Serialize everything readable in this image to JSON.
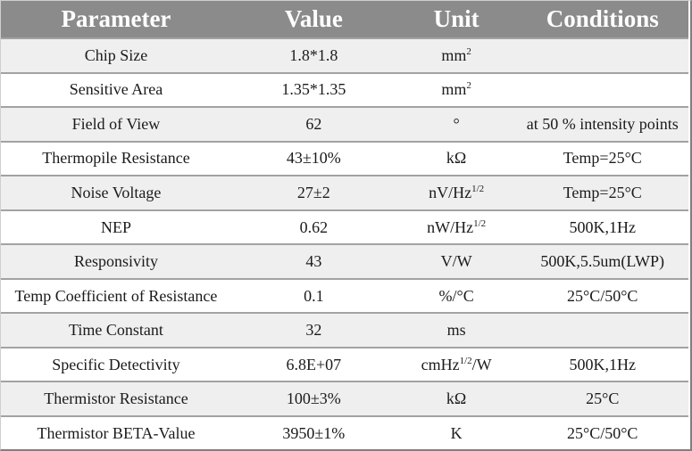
{
  "table": {
    "columns": [
      "Parameter",
      "Value",
      "Unit",
      "Conditions"
    ],
    "rows": [
      {
        "parameter": "Chip Size",
        "value": "1.8*1.8",
        "unit": [
          {
            "t": "mm"
          },
          {
            "s": "2"
          }
        ],
        "conditions": ""
      },
      {
        "parameter": "Sensitive Area",
        "value": "1.35*1.35",
        "unit": [
          {
            "t": "mm"
          },
          {
            "s": "2"
          }
        ],
        "conditions": ""
      },
      {
        "parameter": "Field of View",
        "value": "62",
        "unit": "°",
        "conditions": "at 50 % intensity points"
      },
      {
        "parameter": "Thermopile Resistance",
        "value": "43±10%",
        "unit": "kΩ",
        "conditions": "Temp=25°C"
      },
      {
        "parameter": "Noise Voltage",
        "value": "27±2",
        "unit": [
          {
            "t": "nV/Hz"
          },
          {
            "s": "1/2"
          }
        ],
        "conditions": "Temp=25°C"
      },
      {
        "parameter": "NEP",
        "value": "0.62",
        "unit": [
          {
            "t": "nW/Hz"
          },
          {
            "s": "1/2"
          }
        ],
        "conditions": "500K,1Hz"
      },
      {
        "parameter": "Responsivity",
        "value": "43",
        "unit": "V/W",
        "conditions": "500K,5.5um(LWP)"
      },
      {
        "parameter": "Temp Coefficient of Resistance",
        "value": "0.1",
        "unit": "%/°C",
        "conditions": "25°C/50°C"
      },
      {
        "parameter": "Time Constant",
        "value": "32",
        "unit": "ms",
        "conditions": ""
      },
      {
        "parameter": "Specific Detectivity",
        "value": "6.8E+07",
        "unit": [
          {
            "t": "cmHz"
          },
          {
            "s": "1/2"
          },
          {
            "t": "/W"
          }
        ],
        "conditions": "500K,1Hz"
      },
      {
        "parameter": "Thermistor Resistance",
        "value": "100±3%",
        "unit": "kΩ",
        "conditions": "25°C"
      },
      {
        "parameter": "Thermistor BETA-Value",
        "value": "3950±1%",
        "unit": "K",
        "conditions": "25°C/50°C"
      }
    ]
  },
  "colors": {
    "header_bg": "#8b8b8b",
    "header_text": "#ffffff",
    "row_bg": "#ffffff",
    "row_alt_bg": "#f0eff0",
    "row_border": "#a2a2a2",
    "outer_border": "#7f7f7f",
    "body_text": "#1b1b1b"
  }
}
